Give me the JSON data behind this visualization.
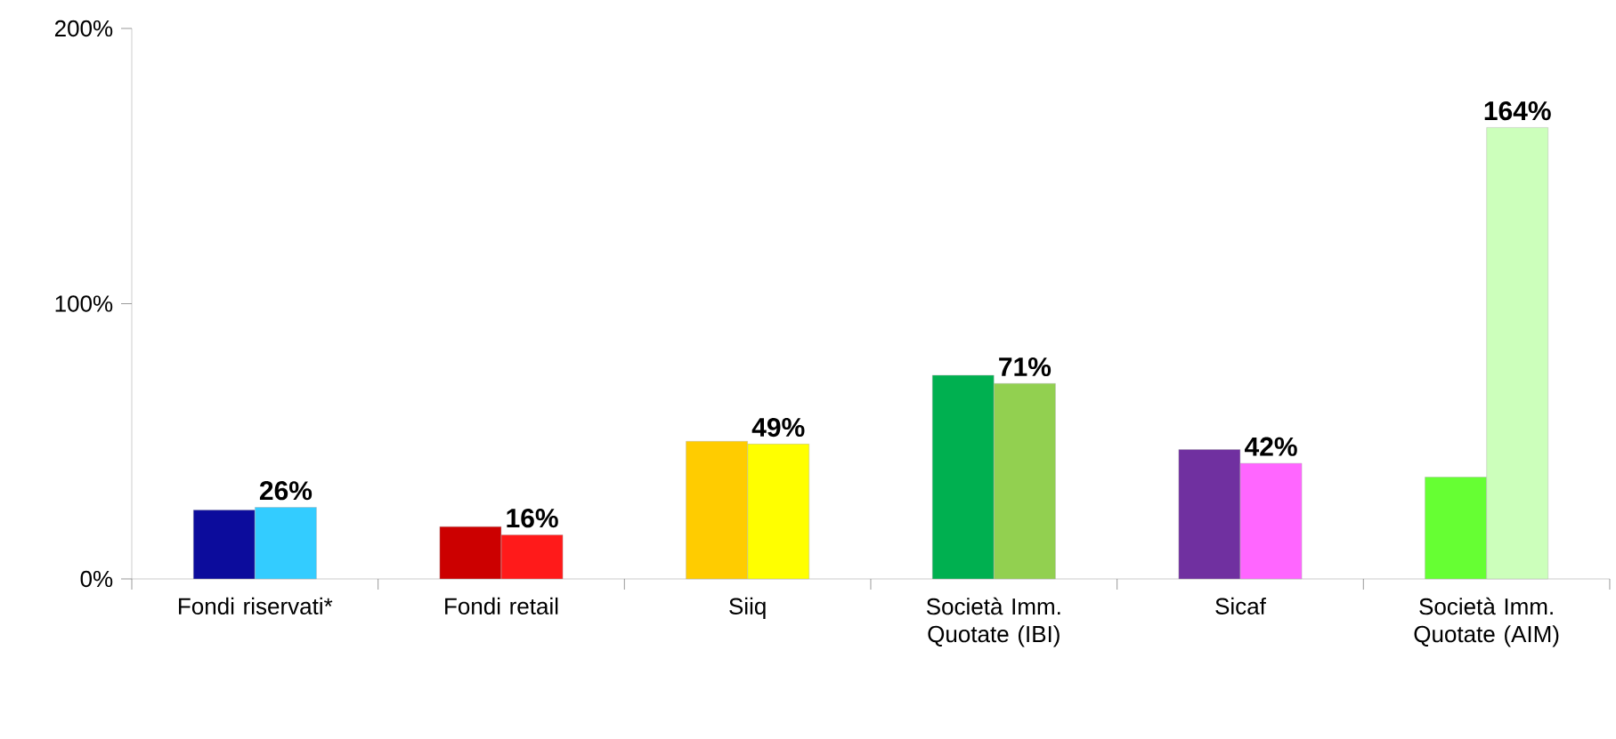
{
  "chart_data": {
    "type": "bar",
    "categories": [
      "Fondi riservati*",
      "Fondi retail",
      "Siiq",
      "Società Imm. Quotate (IBI)",
      "Sicaf",
      "Società Imm. Quotate (AIM)"
    ],
    "series": [
      {
        "colors": [
          "#0c0c9c",
          "#cc0000",
          "#ffcc00",
          "#00b050",
          "#7030a0",
          "#66ff33"
        ],
        "values": [
          25,
          19,
          50,
          74,
          47,
          37
        ]
      },
      {
        "colors": [
          "#33ccff",
          "#ff1a1a",
          "#ffff00",
          "#92d050",
          "#ff66ff",
          "#ccffbb"
        ],
        "values": [
          26,
          16,
          49,
          71,
          42,
          164
        ],
        "value_labels": [
          "26%",
          "16%",
          "49%",
          "71%",
          "42%",
          "164%"
        ]
      }
    ],
    "ylim": [
      0,
      200
    ],
    "yticks": [
      {
        "value": 0,
        "label": "0%"
      },
      {
        "value": 100,
        "label": "100%"
      },
      {
        "value": 200,
        "label": "200%"
      }
    ],
    "grid": false
  }
}
